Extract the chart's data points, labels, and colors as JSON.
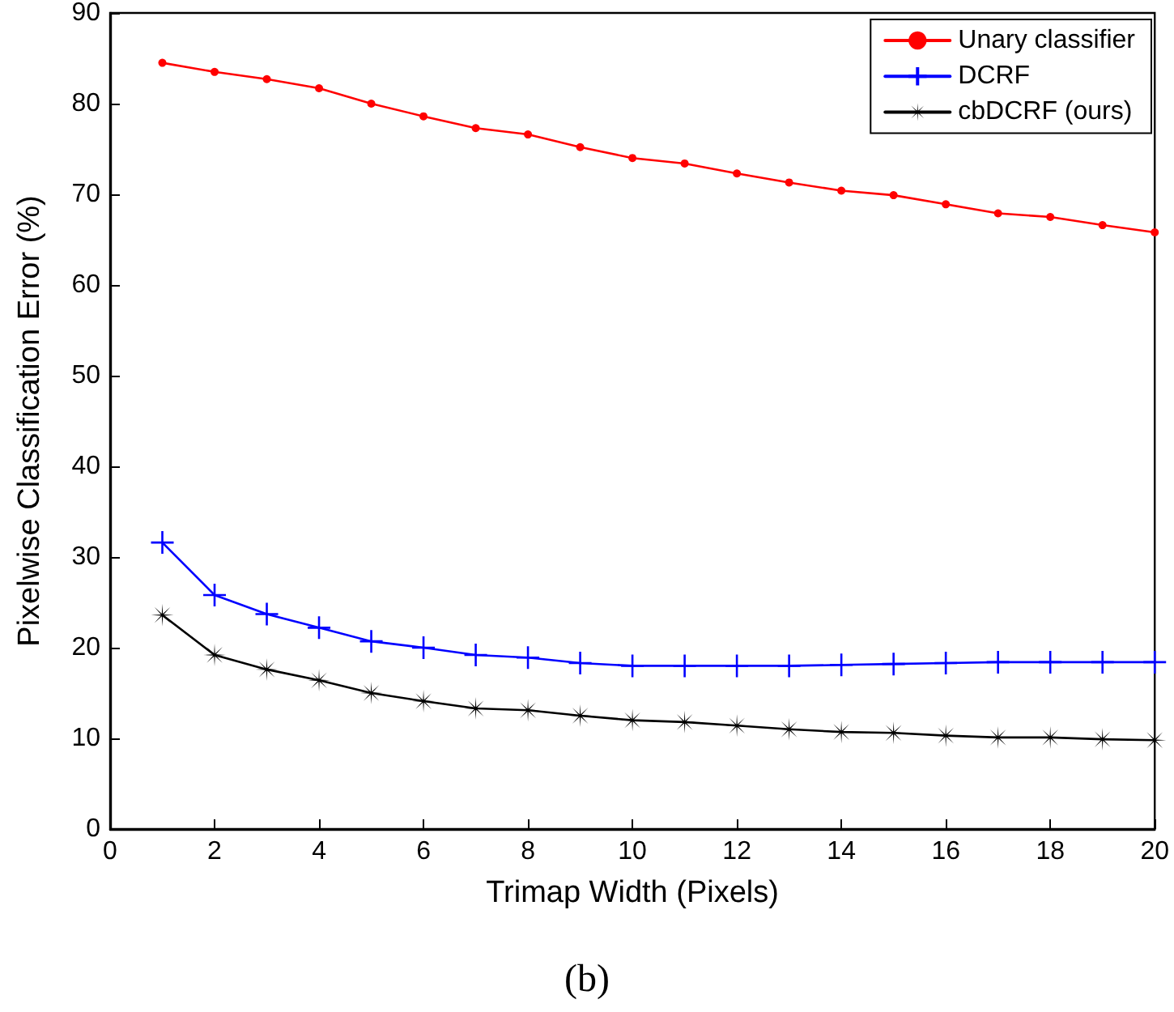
{
  "chart_data": {
    "type": "line",
    "xlabel": "Trimap Width (Pixels)",
    "ylabel": "Pixelwise Classification Error (%)",
    "annotations": [
      "(b)"
    ],
    "x": [
      1,
      2,
      3,
      4,
      5,
      6,
      7,
      8,
      9,
      10,
      11,
      12,
      13,
      14,
      15,
      16,
      17,
      18,
      19,
      20
    ],
    "xlim": [
      0,
      20
    ],
    "xticks": [
      0,
      2,
      4,
      6,
      8,
      10,
      12,
      14,
      16,
      18,
      20
    ],
    "ylim": [
      0,
      90
    ],
    "yticks": [
      0,
      10,
      20,
      30,
      40,
      50,
      60,
      70,
      80,
      90
    ],
    "grid": false,
    "legend": "top right",
    "line_style": "solid",
    "series": [
      {
        "name": "Unary classifier",
        "color": "#ff0000",
        "marker": "circle",
        "values": [
          84.5,
          83.5,
          82.7,
          81.7,
          80,
          78.6,
          77.3,
          76.6,
          75.2,
          74,
          73.4,
          72.3,
          71.3,
          70.4,
          69.9,
          68.9,
          67.9,
          67.5,
          66.6,
          65.8
        ]
      },
      {
        "name": "DCRF",
        "color": "#0000ff",
        "marker": "cross",
        "values": [
          31.6,
          25.8,
          23.7,
          22.2,
          20.7,
          20,
          19.2,
          18.9,
          18.3,
          18,
          18,
          18,
          18,
          18.1,
          18.2,
          18.3,
          18.4,
          18.4,
          18.4,
          18.4
        ]
      },
      {
        "name": "cbDCRF (ours)",
        "color": "#000000",
        "marker": "star",
        "values": [
          23.6,
          19.2,
          17.6,
          16.4,
          15,
          14.1,
          13.3,
          13.1,
          12.5,
          12,
          11.8,
          11.4,
          11,
          10.7,
          10.6,
          10.3,
          10.1,
          10.1,
          9.9,
          9.8
        ]
      }
    ]
  }
}
